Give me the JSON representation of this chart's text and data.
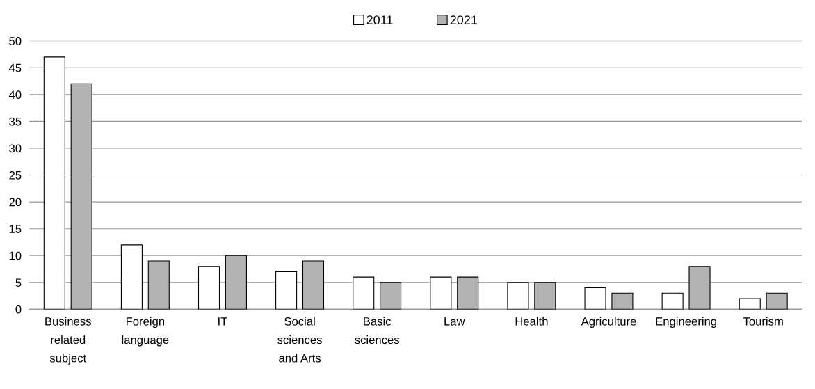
{
  "chart_data": {
    "type": "bar",
    "categories": [
      "Business\nrelated\nsubject",
      "Foreign\nlanguage",
      "IT",
      "Social\nsciences\nand Arts",
      "Basic\nsciences",
      "Law",
      "Health",
      "Agriculture",
      "Engineering",
      "Tourism"
    ],
    "series": [
      {
        "name": "2011",
        "color": "#ffffff",
        "values": [
          47,
          12,
          8,
          7,
          6,
          6,
          5,
          4,
          3,
          2
        ]
      },
      {
        "name": "2021",
        "color": "#b3b3b3",
        "values": [
          42,
          9,
          10,
          9,
          5,
          6,
          5,
          3,
          8,
          3
        ]
      }
    ],
    "ylim": [
      0,
      50
    ],
    "yticks": [
      0,
      5,
      10,
      15,
      20,
      25,
      30,
      35,
      40,
      45,
      50
    ],
    "grid": "y",
    "legend": "top"
  }
}
